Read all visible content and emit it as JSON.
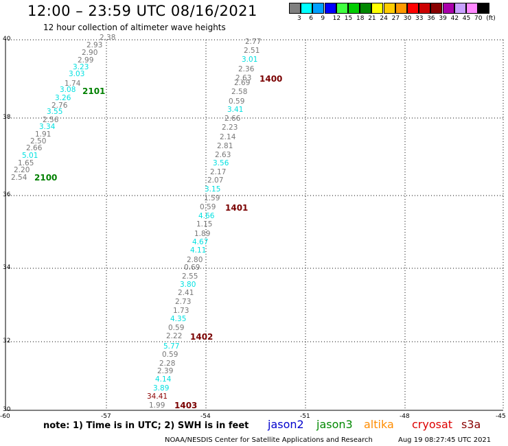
{
  "header": {
    "title": "12:00 – 23:59 UTC 08/16/2021",
    "subtitle": "12 hour collection of altimeter wave heights"
  },
  "legend": {
    "unit": "(ft)",
    "items": [
      {
        "label": "3",
        "color": "#808080"
      },
      {
        "label": "6",
        "color": "#00ffff"
      },
      {
        "label": "9",
        "color": "#00a0ff"
      },
      {
        "label": "12",
        "color": "#0000ff"
      },
      {
        "label": "15",
        "color": "#40ff40"
      },
      {
        "label": "18",
        "color": "#00cc00"
      },
      {
        "label": "21",
        "color": "#008800"
      },
      {
        "label": "24",
        "color": "#ffff00"
      },
      {
        "label": "27",
        "color": "#ffcc00"
      },
      {
        "label": "30",
        "color": "#ff9900"
      },
      {
        "label": "33",
        "color": "#ff0000"
      },
      {
        "label": "36",
        "color": "#cc0000"
      },
      {
        "label": "39",
        "color": "#880000"
      },
      {
        "label": "42",
        "color": "#aa00aa"
      },
      {
        "label": "45",
        "color": "#c8a0ff"
      },
      {
        "label": "70",
        "color": "#ff88ff"
      },
      {
        "label": "",
        "color": "#000000"
      }
    ]
  },
  "axes": {
    "lon_labels": [
      "-60",
      "-57",
      "-54",
      "-51",
      "-48",
      "-45"
    ],
    "lat_labels": [
      "40",
      "38",
      "36",
      "34",
      "32",
      "30"
    ]
  },
  "tracks": [
    {
      "label": "2101",
      "color": "#008000"
    },
    {
      "label": "2100",
      "color": "#008000"
    },
    {
      "label": "1400",
      "color": "#7a0000"
    },
    {
      "label": "1401",
      "color": "#7a0000"
    },
    {
      "label": "1402",
      "color": "#7a0000"
    },
    {
      "label": "1403",
      "color": "#7a0000"
    }
  ],
  "points": [
    {
      "v": "2.38",
      "c": "gray"
    },
    {
      "v": "2.93",
      "c": "gray"
    },
    {
      "v": "2.90",
      "c": "gray"
    },
    {
      "v": "2.99",
      "c": "gray"
    },
    {
      "v": "3.23",
      "c": "cyan"
    },
    {
      "v": "3.03",
      "c": "cyan"
    },
    {
      "v": "1.74",
      "c": "gray"
    },
    {
      "v": "3.08",
      "c": "cyan"
    },
    {
      "v": "3.26",
      "c": "cyan"
    },
    {
      "v": "2.76",
      "c": "gray"
    },
    {
      "v": "3.55",
      "c": "cyan"
    },
    {
      "v": "2.56",
      "c": "gray"
    },
    {
      "v": "3.34",
      "c": "cyan"
    },
    {
      "v": "1.91",
      "c": "gray"
    },
    {
      "v": "2.50",
      "c": "gray"
    },
    {
      "v": "2.66",
      "c": "gray"
    },
    {
      "v": "5.01",
      "c": "cyan"
    },
    {
      "v": "1.65",
      "c": "gray"
    },
    {
      "v": "2.20",
      "c": "gray"
    },
    {
      "v": "2.54",
      "c": "gray"
    },
    {
      "v": "2.77",
      "c": "gray"
    },
    {
      "v": "2.51",
      "c": "gray"
    },
    {
      "v": "3.01",
      "c": "cyan"
    },
    {
      "v": "2.36",
      "c": "gray"
    },
    {
      "v": "2.63",
      "c": "gray"
    },
    {
      "v": "2.69",
      "c": "gray"
    },
    {
      "v": "2.58",
      "c": "gray"
    },
    {
      "v": "0.59",
      "c": "gray"
    },
    {
      "v": "3.41",
      "c": "cyan"
    },
    {
      "v": "2.66",
      "c": "gray"
    },
    {
      "v": "2.23",
      "c": "gray"
    },
    {
      "v": "2.14",
      "c": "gray"
    },
    {
      "v": "2.81",
      "c": "gray"
    },
    {
      "v": "2.63",
      "c": "gray"
    },
    {
      "v": "3.56",
      "c": "cyan"
    },
    {
      "v": "2.17",
      "c": "gray"
    },
    {
      "v": "2.07",
      "c": "gray"
    },
    {
      "v": "3.15",
      "c": "cyan"
    },
    {
      "v": "1.59",
      "c": "gray"
    },
    {
      "v": "0.59",
      "c": "gray"
    },
    {
      "v": "4.66",
      "c": "cyan"
    },
    {
      "v": "1.15",
      "c": "gray"
    },
    {
      "v": "1.89",
      "c": "gray"
    },
    {
      "v": "4.67",
      "c": "cyan"
    },
    {
      "v": "4.11",
      "c": "cyan"
    },
    {
      "v": "2.80",
      "c": "gray"
    },
    {
      "v": "0.69",
      "c": "gray"
    },
    {
      "v": "2.55",
      "c": "gray"
    },
    {
      "v": "3.80",
      "c": "cyan"
    },
    {
      "v": "2.41",
      "c": "gray"
    },
    {
      "v": "2.73",
      "c": "gray"
    },
    {
      "v": "1.73",
      "c": "gray"
    },
    {
      "v": "4.35",
      "c": "cyan"
    },
    {
      "v": "0.59",
      "c": "gray"
    },
    {
      "v": "2.22",
      "c": "gray"
    },
    {
      "v": "5.77",
      "c": "cyan"
    },
    {
      "v": "0.59",
      "c": "gray"
    },
    {
      "v": "2.28",
      "c": "gray"
    },
    {
      "v": "2.39",
      "c": "gray"
    },
    {
      "v": "4.14",
      "c": "cyan"
    },
    {
      "v": "3.89",
      "c": "cyan"
    },
    {
      "v": "34.41",
      "c": "darkred"
    },
    {
      "v": "1.99",
      "c": "gray"
    }
  ],
  "footer": {
    "note": "note: 1) Time is in UTC; 2) SWH is in feet",
    "satellites": [
      {
        "name": "jason2",
        "color": "#0000cc"
      },
      {
        "name": "jason3",
        "color": "#008800"
      },
      {
        "name": "altika",
        "color": "#ff8c00"
      },
      {
        "name": "cryosat",
        "color": "#dd0000"
      },
      {
        "name": "s3a",
        "color": "#880000"
      }
    ],
    "credit": "NOAA/NESDIS Center for Satellite Applications and Research",
    "timestamp": "Aug 19 08:27:45 UTC 2021"
  }
}
